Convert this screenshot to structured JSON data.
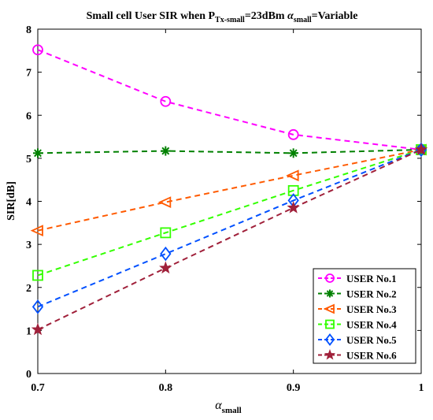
{
  "chart_data": {
    "type": "line",
    "title": {
      "prefix": "Small cell User SIR when P",
      "sub1": "Tx-small",
      "middle": "=23dBm ",
      "alpha": "α",
      "sub2": "small",
      "suffix": "=Variable"
    },
    "xlabel": {
      "main": "α",
      "sub": "small"
    },
    "ylabel": "SIR[dB]",
    "x": [
      0.7,
      0.8,
      0.9,
      1.0
    ],
    "xlim": [
      0.7,
      1.0
    ],
    "ylim": [
      0,
      8
    ],
    "xticks": [
      "0.7",
      "0.8",
      "0.9",
      "1"
    ],
    "yticks": [
      "0",
      "1",
      "2",
      "3",
      "4",
      "5",
      "6",
      "7",
      "8"
    ],
    "grid": false,
    "legend_position": "bottom-right",
    "series": [
      {
        "name": "USER No.1",
        "values": [
          7.52,
          6.32,
          5.55,
          5.2
        ],
        "color": "#ff00ff",
        "marker": "circle"
      },
      {
        "name": "USER No.2",
        "values": [
          5.12,
          5.17,
          5.12,
          5.2
        ],
        "color": "#008000",
        "marker": "asterisk"
      },
      {
        "name": "USER No.3",
        "values": [
          3.32,
          3.98,
          4.6,
          5.2
        ],
        "color": "#ff5a00",
        "marker": "triangle-left"
      },
      {
        "name": "USER No.4",
        "values": [
          2.28,
          3.27,
          4.25,
          5.2
        ],
        "color": "#33ff00",
        "marker": "square"
      },
      {
        "name": "USER No.5",
        "values": [
          1.55,
          2.78,
          4.02,
          5.2
        ],
        "color": "#0050ff",
        "marker": "diamond"
      },
      {
        "name": "USER No.6",
        "values": [
          1.02,
          2.45,
          3.85,
          5.2
        ],
        "color": "#a0203a",
        "marker": "star"
      }
    ]
  }
}
